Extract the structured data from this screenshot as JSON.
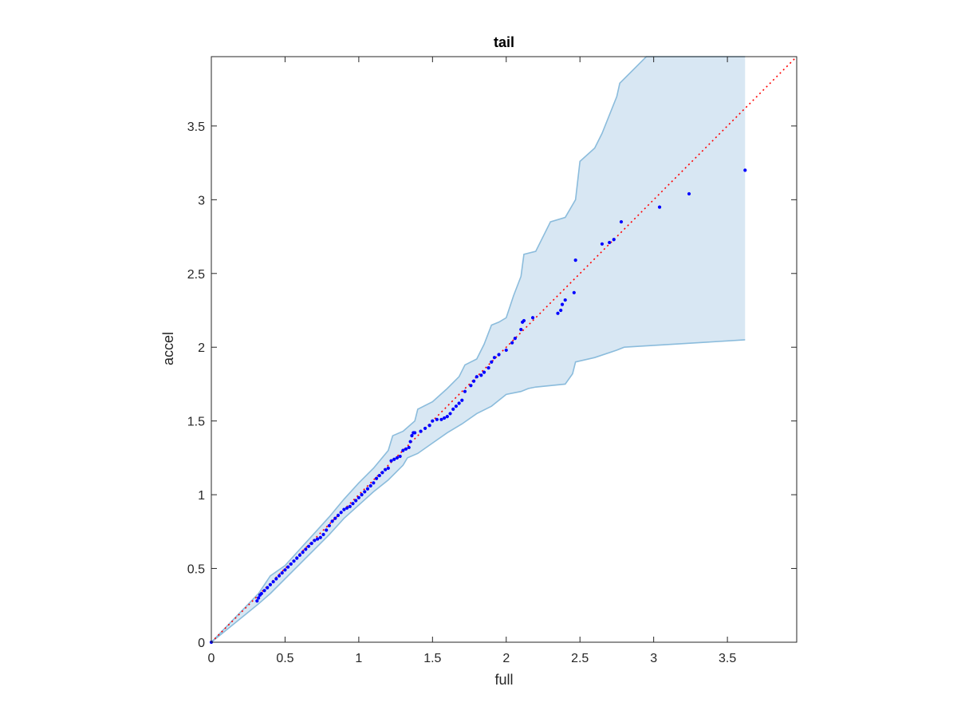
{
  "chart_data": {
    "type": "scatter",
    "title": "tail",
    "xlabel": "full",
    "ylabel": "accel",
    "xlim": [
      0,
      3.97
    ],
    "ylim": [
      0,
      3.97
    ],
    "xticks": [
      0,
      0.5,
      1,
      1.5,
      2,
      2.5,
      3,
      3.5
    ],
    "yticks": [
      0,
      0.5,
      1,
      1.5,
      2,
      2.5,
      3,
      3.5
    ],
    "xtick_labels": [
      "0",
      "0.5",
      "1",
      "1.5",
      "2",
      "2.5",
      "3",
      "3.5"
    ],
    "ytick_labels": [
      "0",
      "0.5",
      "1",
      "1.5",
      "2",
      "2.5",
      "3",
      "3.5"
    ],
    "grid": false,
    "colors": {
      "points": "#0000ff",
      "reference_line": "#ff0000",
      "band_fill": "#d8e7f3",
      "band_edge": "#8bbcdc",
      "axes": "#262626"
    },
    "reference_line": {
      "x": [
        0,
        3.97
      ],
      "y": [
        0,
        3.97
      ],
      "style": "dotted"
    },
    "confidence_band": {
      "upper": [
        [
          0,
          0
        ],
        [
          0.32,
          0.33
        ],
        [
          0.36,
          0.39
        ],
        [
          0.4,
          0.45
        ],
        [
          0.5,
          0.52
        ],
        [
          0.6,
          0.63
        ],
        [
          0.7,
          0.74
        ],
        [
          0.8,
          0.85
        ],
        [
          0.9,
          0.97
        ],
        [
          1.0,
          1.08
        ],
        [
          1.1,
          1.18
        ],
        [
          1.2,
          1.3
        ],
        [
          1.23,
          1.4
        ],
        [
          1.3,
          1.43
        ],
        [
          1.38,
          1.5
        ],
        [
          1.4,
          1.58
        ],
        [
          1.5,
          1.63
        ],
        [
          1.6,
          1.72
        ],
        [
          1.68,
          1.8
        ],
        [
          1.72,
          1.88
        ],
        [
          1.8,
          1.92
        ],
        [
          1.85,
          2.02
        ],
        [
          1.9,
          2.15
        ],
        [
          1.95,
          2.17
        ],
        [
          2.0,
          2.2
        ],
        [
          2.05,
          2.35
        ],
        [
          2.1,
          2.48
        ],
        [
          2.12,
          2.63
        ],
        [
          2.2,
          2.65
        ],
        [
          2.25,
          2.75
        ],
        [
          2.3,
          2.85
        ],
        [
          2.4,
          2.88
        ],
        [
          2.47,
          3.0
        ],
        [
          2.5,
          3.26
        ],
        [
          2.6,
          3.35
        ],
        [
          2.65,
          3.45
        ],
        [
          2.75,
          3.7
        ],
        [
          2.77,
          3.79
        ],
        [
          2.95,
          3.98
        ],
        [
          3.0,
          4.1
        ],
        [
          3.62,
          4.1
        ]
      ],
      "lower": [
        [
          0,
          0
        ],
        [
          0.32,
          0.26
        ],
        [
          0.4,
          0.33
        ],
        [
          0.5,
          0.43
        ],
        [
          0.6,
          0.53
        ],
        [
          0.7,
          0.63
        ],
        [
          0.8,
          0.73
        ],
        [
          0.9,
          0.84
        ],
        [
          1.0,
          0.93
        ],
        [
          1.1,
          1.02
        ],
        [
          1.2,
          1.1
        ],
        [
          1.3,
          1.2
        ],
        [
          1.33,
          1.25
        ],
        [
          1.4,
          1.28
        ],
        [
          1.5,
          1.35
        ],
        [
          1.6,
          1.42
        ],
        [
          1.7,
          1.48
        ],
        [
          1.8,
          1.55
        ],
        [
          1.9,
          1.6
        ],
        [
          2.0,
          1.68
        ],
        [
          2.1,
          1.7
        ],
        [
          2.15,
          1.72
        ],
        [
          2.2,
          1.73
        ],
        [
          2.4,
          1.75
        ],
        [
          2.45,
          1.82
        ],
        [
          2.47,
          1.9
        ],
        [
          2.6,
          1.93
        ],
        [
          2.75,
          1.98
        ],
        [
          2.8,
          2.0
        ],
        [
          3.62,
          2.05
        ]
      ],
      "x_end": 3.62
    },
    "series": [
      {
        "points": [
          [
            0,
            0
          ],
          [
            0.31,
            0.28
          ],
          [
            0.32,
            0.3
          ],
          [
            0.33,
            0.32
          ],
          [
            0.34,
            0.33
          ],
          [
            0.36,
            0.35
          ],
          [
            0.38,
            0.37
          ],
          [
            0.4,
            0.39
          ],
          [
            0.42,
            0.41
          ],
          [
            0.44,
            0.43
          ],
          [
            0.46,
            0.45
          ],
          [
            0.48,
            0.47
          ],
          [
            0.5,
            0.49
          ],
          [
            0.52,
            0.51
          ],
          [
            0.54,
            0.53
          ],
          [
            0.56,
            0.55
          ],
          [
            0.58,
            0.57
          ],
          [
            0.6,
            0.59
          ],
          [
            0.62,
            0.61
          ],
          [
            0.64,
            0.63
          ],
          [
            0.66,
            0.65
          ],
          [
            0.68,
            0.67
          ],
          [
            0.7,
            0.69
          ],
          [
            0.72,
            0.7
          ],
          [
            0.74,
            0.71
          ],
          [
            0.76,
            0.73
          ],
          [
            0.78,
            0.76
          ],
          [
            0.8,
            0.79
          ],
          [
            0.82,
            0.82
          ],
          [
            0.84,
            0.84
          ],
          [
            0.86,
            0.86
          ],
          [
            0.88,
            0.88
          ],
          [
            0.9,
            0.9
          ],
          [
            0.92,
            0.91
          ],
          [
            0.94,
            0.92
          ],
          [
            0.96,
            0.94
          ],
          [
            0.98,
            0.96
          ],
          [
            1.0,
            0.98
          ],
          [
            1.02,
            1.0
          ],
          [
            1.04,
            1.02
          ],
          [
            1.06,
            1.04
          ],
          [
            1.08,
            1.06
          ],
          [
            1.1,
            1.08
          ],
          [
            1.12,
            1.11
          ],
          [
            1.14,
            1.13
          ],
          [
            1.16,
            1.15
          ],
          [
            1.18,
            1.17
          ],
          [
            1.2,
            1.18
          ],
          [
            1.22,
            1.23
          ],
          [
            1.24,
            1.24
          ],
          [
            1.26,
            1.25
          ],
          [
            1.28,
            1.26
          ],
          [
            1.3,
            1.3
          ],
          [
            1.32,
            1.31
          ],
          [
            1.34,
            1.32
          ],
          [
            1.35,
            1.36
          ],
          [
            1.36,
            1.4
          ],
          [
            1.37,
            1.42
          ],
          [
            1.38,
            1.42
          ],
          [
            1.42,
            1.43
          ],
          [
            1.45,
            1.45
          ],
          [
            1.48,
            1.47
          ],
          [
            1.5,
            1.5
          ],
          [
            1.53,
            1.51
          ],
          [
            1.56,
            1.51
          ],
          [
            1.58,
            1.52
          ],
          [
            1.6,
            1.53
          ],
          [
            1.62,
            1.55
          ],
          [
            1.64,
            1.58
          ],
          [
            1.66,
            1.6
          ],
          [
            1.68,
            1.62
          ],
          [
            1.7,
            1.64
          ],
          [
            1.72,
            1.7
          ],
          [
            1.76,
            1.74
          ],
          [
            1.78,
            1.77
          ],
          [
            1.8,
            1.8
          ],
          [
            1.83,
            1.81
          ],
          [
            1.85,
            1.83
          ],
          [
            1.88,
            1.86
          ],
          [
            1.9,
            1.9
          ],
          [
            1.92,
            1.93
          ],
          [
            1.95,
            1.95
          ],
          [
            2.0,
            1.98
          ],
          [
            2.04,
            2.03
          ],
          [
            2.06,
            2.06
          ],
          [
            2.1,
            2.12
          ],
          [
            2.11,
            2.17
          ],
          [
            2.12,
            2.18
          ],
          [
            2.18,
            2.2
          ],
          [
            2.35,
            2.23
          ],
          [
            2.37,
            2.25
          ],
          [
            2.38,
            2.29
          ],
          [
            2.4,
            2.32
          ],
          [
            2.46,
            2.37
          ],
          [
            2.47,
            2.59
          ],
          [
            2.65,
            2.7
          ],
          [
            2.7,
            2.71
          ],
          [
            2.73,
            2.73
          ],
          [
            2.78,
            2.85
          ],
          [
            3.04,
            2.95
          ],
          [
            3.24,
            3.04
          ],
          [
            3.62,
            3.2
          ]
        ]
      }
    ]
  }
}
